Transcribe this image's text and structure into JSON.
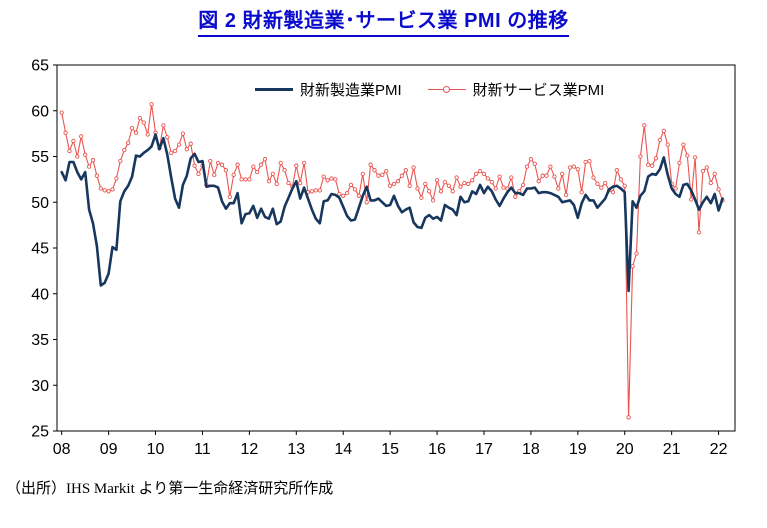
{
  "header": {
    "title": "図 2  財新製造業･サービス業 PMI の推移",
    "title_color": "#0a0acc"
  },
  "footer": {
    "source": "（出所）IHS Markit より第一生命経済研究所作成"
  },
  "chart_data": {
    "type": "line",
    "title": "図2 財新製造業･サービス業PMIの推移",
    "xlabel": "",
    "ylabel": "",
    "ylim": [
      25,
      65
    ],
    "y_ticks": [
      65,
      60,
      55,
      50,
      45,
      40,
      35,
      30,
      25
    ],
    "x_tick_labels": [
      "08",
      "09",
      "10",
      "11",
      "12",
      "13",
      "14",
      "15",
      "16",
      "17",
      "18",
      "19",
      "20",
      "21",
      "22"
    ],
    "x_tick_years": [
      2008,
      2009,
      2010,
      2011,
      2012,
      2013,
      2014,
      2015,
      2016,
      2017,
      2018,
      2019,
      2020,
      2021,
      2022
    ],
    "x_range": [
      2007.9,
      2022.35
    ],
    "start_year": 2008,
    "frequency": "monthly",
    "grid": false,
    "legend_position": "top-center-inside",
    "series": [
      {
        "name": "財新製造業PMI",
        "color": "#17375e",
        "line_width": 2.6,
        "markers": false,
        "values": [
          53.3,
          52.4,
          54.4,
          54.4,
          53.3,
          52.5,
          53.3,
          49.2,
          47.7,
          45.2,
          40.9,
          41.2,
          42.2,
          45.1,
          44.8,
          50.1,
          51.2,
          51.8,
          52.8,
          55.1,
          55.0,
          55.4,
          55.7,
          56.1,
          57.4,
          55.8,
          57.0,
          55.2,
          52.7,
          50.4,
          49.4,
          51.9,
          52.9,
          54.8,
          55.3,
          54.4,
          54.5,
          51.7,
          51.8,
          51.8,
          51.6,
          50.1,
          49.3,
          49.9,
          49.9,
          51.0,
          47.7,
          48.7,
          48.8,
          49.6,
          48.3,
          49.3,
          48.4,
          48.2,
          49.3,
          47.6,
          47.9,
          49.5,
          50.5,
          51.5,
          52.3,
          50.4,
          51.6,
          50.4,
          49.2,
          48.2,
          47.7,
          50.1,
          50.2,
          50.9,
          50.8,
          50.5,
          49.5,
          48.5,
          48.0,
          48.1,
          49.4,
          50.7,
          51.7,
          50.2,
          50.2,
          50.4,
          50.0,
          49.6,
          49.7,
          50.7,
          49.6,
          48.9,
          49.2,
          49.4,
          47.8,
          47.3,
          47.2,
          48.3,
          48.6,
          48.2,
          48.4,
          48.0,
          49.7,
          49.4,
          49.2,
          48.6,
          50.6,
          50.0,
          50.1,
          51.2,
          50.9,
          51.9,
          51.0,
          51.7,
          51.2,
          50.3,
          49.6,
          50.4,
          51.1,
          51.6,
          51.0,
          51.0,
          50.8,
          51.5,
          51.5,
          51.6,
          51.0,
          51.1,
          51.1,
          51.0,
          50.8,
          50.6,
          50.0,
          50.1,
          50.2,
          49.7,
          48.3,
          49.9,
          50.8,
          50.2,
          50.2,
          49.4,
          49.9,
          50.4,
          51.4,
          51.7,
          51.8,
          51.5,
          51.1,
          40.3,
          50.1,
          49.4,
          50.7,
          51.2,
          52.8,
          53.1,
          53.0,
          53.6,
          54.9,
          53.0,
          51.5,
          50.9,
          50.6,
          51.9,
          52.0,
          51.3,
          50.3,
          49.2,
          50.0,
          50.6,
          49.9,
          50.9,
          49.1,
          50.4
        ]
      },
      {
        "name": "財新サービス業PMI",
        "color": "#ea5550",
        "line_width": 1.1,
        "markers": true,
        "values": [
          59.8,
          57.6,
          55.6,
          56.7,
          55.0,
          57.2,
          55.2,
          53.9,
          54.6,
          52.9,
          51.5,
          51.3,
          51.2,
          51.4,
          52.6,
          54.5,
          55.7,
          56.5,
          58.1,
          57.6,
          59.2,
          58.7,
          57.4,
          60.7,
          57.6,
          55.9,
          58.4,
          57.1,
          55.4,
          55.6,
          56.3,
          57.5,
          55.8,
          56.4,
          54.0,
          53.1,
          54.0,
          51.9,
          54.5,
          53.0,
          54.3,
          54.1,
          53.5,
          50.6,
          53.0,
          54.1,
          52.5,
          52.5,
          52.5,
          53.9,
          53.3,
          54.1,
          54.7,
          52.3,
          53.1,
          52.0,
          54.3,
          53.5,
          52.1,
          51.7,
          54.0,
          52.1,
          54.3,
          51.1,
          51.2,
          51.3,
          51.3,
          52.8,
          52.4,
          52.6,
          52.5,
          50.9,
          50.7,
          51.0,
          51.9,
          51.4,
          50.7,
          53.1,
          50.0,
          54.1,
          53.5,
          52.9,
          53.0,
          53.4,
          51.8,
          52.0,
          52.3,
          52.9,
          53.5,
          51.8,
          53.8,
          51.5,
          50.5,
          52.0,
          51.2,
          50.2,
          52.4,
          51.2,
          52.2,
          51.8,
          51.2,
          52.7,
          51.7,
          52.1,
          52.0,
          52.4,
          53.1,
          53.4,
          53.1,
          52.6,
          52.2,
          51.5,
          52.8,
          51.6,
          51.5,
          52.7,
          50.6,
          51.2,
          51.9,
          53.9,
          54.7,
          54.2,
          52.3,
          52.9,
          52.9,
          53.9,
          52.8,
          51.5,
          53.1,
          50.8,
          53.8,
          53.9,
          53.6,
          51.1,
          54.4,
          54.5,
          52.7,
          52.0,
          51.6,
          52.1,
          51.3,
          51.1,
          53.5,
          52.5,
          51.8,
          26.5,
          43.0,
          44.4,
          55.0,
          58.4,
          54.1,
          54.0,
          54.8,
          56.8,
          57.8,
          56.3,
          52.0,
          51.5,
          54.3,
          56.3,
          55.1,
          50.3,
          54.9,
          46.7,
          53.4,
          53.8,
          52.1,
          53.1,
          51.4,
          50.2
        ]
      }
    ]
  }
}
